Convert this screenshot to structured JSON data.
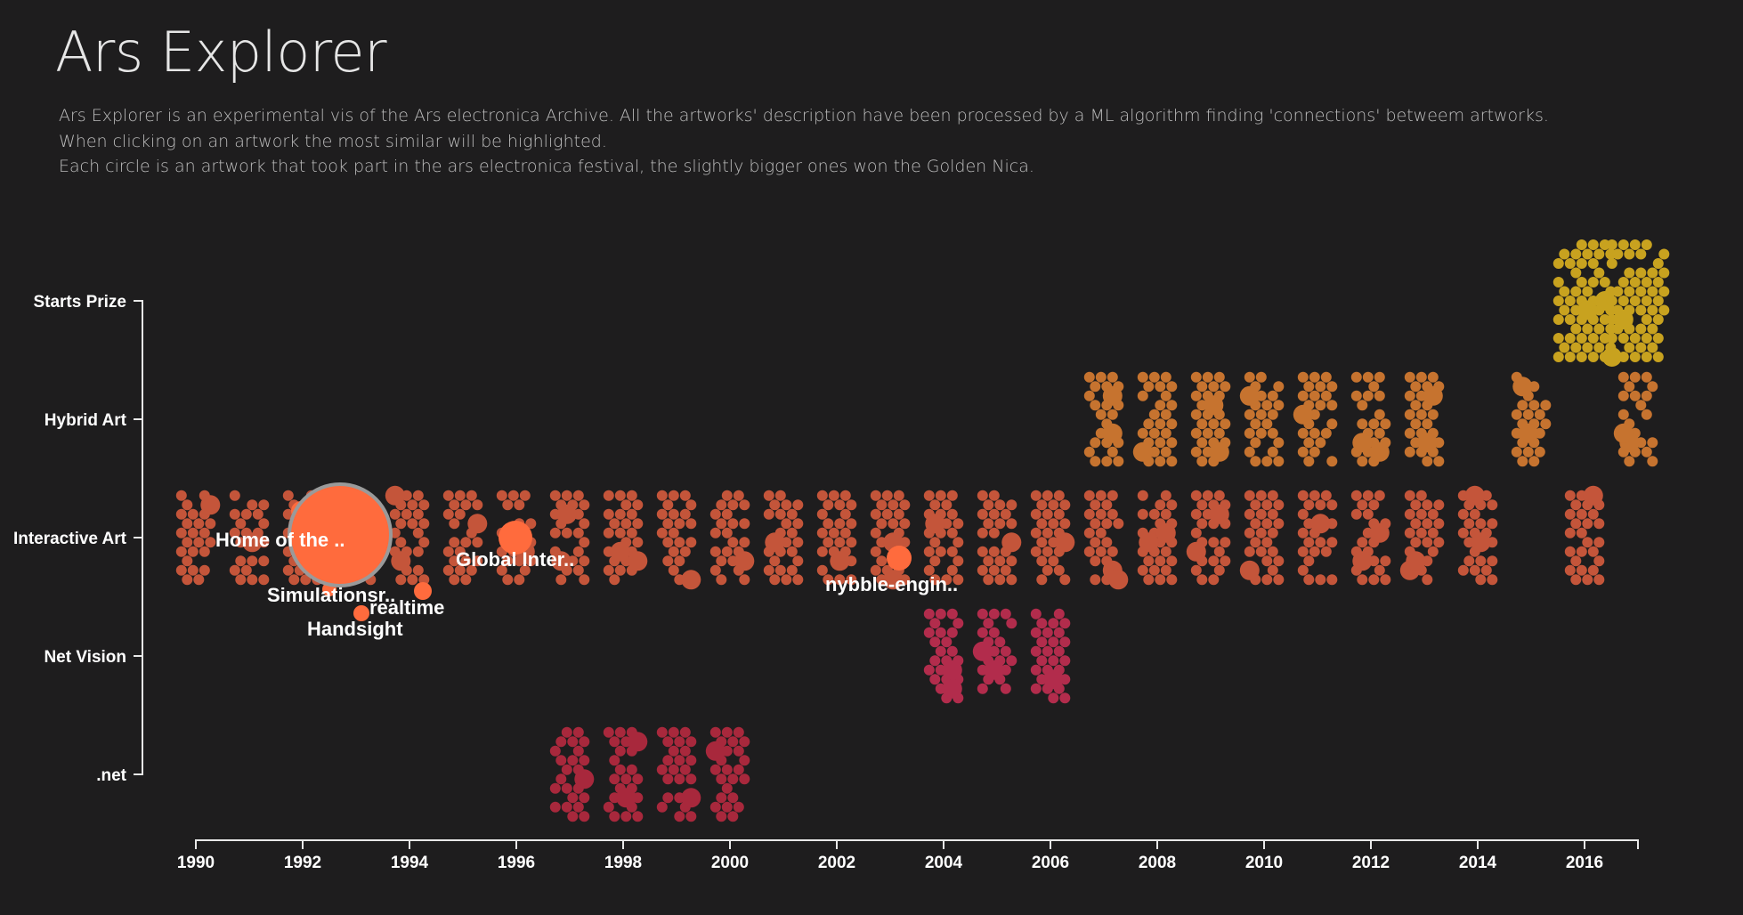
{
  "header": {
    "title": "Ars Explorer",
    "description": [
      "Ars Explorer is an experimental vis of the Ars electronica Archive. All the artworks' description have been processed by a ML algorithm finding 'connections' betweem artworks.",
      "When clicking on an artwork the most similar will be highlighted.",
      "Each circle is an artwork that took part in the ars electronica festival, the slightly bigger ones won the Golden Nica."
    ]
  },
  "chart_data": {
    "type": "scatter",
    "title": "",
    "xlabel": "",
    "ylabel": "",
    "x_ticks": [
      1990,
      1992,
      1994,
      1996,
      1998,
      2000,
      2002,
      2004,
      2006,
      2008,
      2010,
      2012,
      2014,
      2016
    ],
    "xlim": [
      1990,
      2017
    ],
    "categories": [
      "Starts Prize",
      "Hybrid Art",
      "Interactive Art",
      "Net Vision",
      ".net"
    ],
    "colors": {
      "Starts Prize": "#c8a21f",
      "Hybrid Art": "#c6732f",
      "Interactive Art": "#c4553a",
      "Net Vision": "#b22c4c",
      ".net": "#a8283c"
    },
    "highlight_color": "#ff6b3d",
    "clusters": [
      {
        "category": "Interactive Art",
        "years": [
          1990,
          1991,
          1992,
          1993,
          1994,
          1995,
          1996,
          1997,
          1998,
          1999,
          2000,
          2001,
          2002,
          2003,
          2004,
          2005,
          2006,
          2007,
          2008,
          2009,
          2010,
          2011,
          2012,
          2013,
          2014,
          2016
        ]
      },
      {
        "category": "Hybrid Art",
        "years": [
          2007,
          2008,
          2009,
          2010,
          2011,
          2012,
          2013,
          2015,
          2017
        ]
      },
      {
        "category": "Net Vision",
        "years": [
          2004,
          2005,
          2006
        ]
      },
      {
        "category": ".net",
        "years": [
          1997,
          1998,
          1999,
          2000
        ]
      },
      {
        "category": "Starts Prize",
        "years": [
          2016,
          2017
        ]
      }
    ],
    "selected": {
      "label": "Home of the ..",
      "year": 1993,
      "category": "Interactive Art"
    },
    "similar": [
      {
        "label": "Global Inter..",
        "year": 1996,
        "category": "Interactive Art"
      },
      {
        "label": "Simulationsr..",
        "year": 1993,
        "category": "Interactive Art"
      },
      {
        "label": "realtime",
        "year": 1994,
        "category": "Interactive Art"
      },
      {
        "label": "Handsight",
        "year": 1993,
        "category": "Interactive Art"
      },
      {
        "label": "nybble-engin..",
        "year": 2003,
        "category": "Interactive Art"
      }
    ]
  }
}
